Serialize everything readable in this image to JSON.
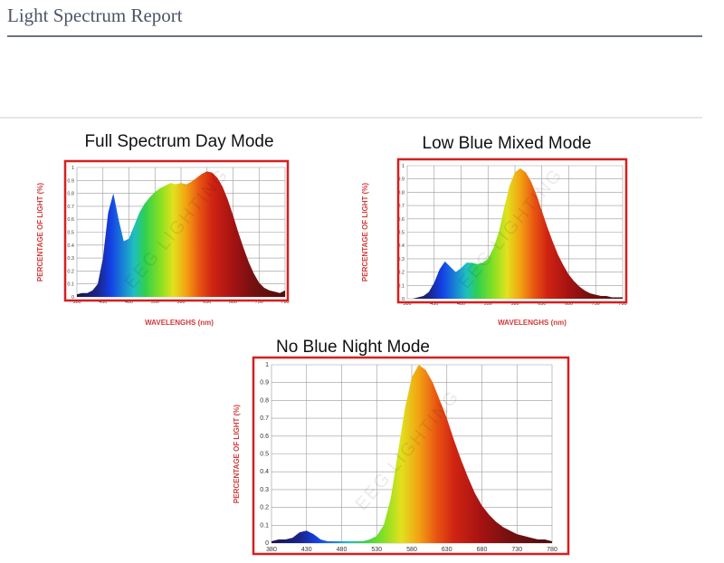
{
  "header": {
    "title": "Light Spectrum Report"
  },
  "chart_data": [
    {
      "type": "area",
      "title": "Full Spectrum Day Mode",
      "xlabel": "WAVELENGHS (nm)",
      "ylabel": "PERCENTAGE OF LIGHT (%)",
      "watermark": "EEG LIGHTING",
      "x": [
        380,
        390,
        400,
        410,
        420,
        430,
        440,
        450,
        460,
        470,
        480,
        490,
        500,
        510,
        520,
        530,
        540,
        550,
        560,
        570,
        580,
        590,
        600,
        610,
        620,
        630,
        640,
        650,
        660,
        670,
        680,
        690,
        700,
        710,
        720,
        730,
        740,
        750,
        760,
        770,
        780
      ],
      "values": [
        0.02,
        0.03,
        0.03,
        0.05,
        0.1,
        0.3,
        0.65,
        0.8,
        0.6,
        0.43,
        0.45,
        0.55,
        0.65,
        0.72,
        0.77,
        0.81,
        0.84,
        0.86,
        0.88,
        0.87,
        0.88,
        0.87,
        0.89,
        0.92,
        0.95,
        0.97,
        0.96,
        0.92,
        0.85,
        0.75,
        0.63,
        0.5,
        0.38,
        0.27,
        0.18,
        0.11,
        0.07,
        0.05,
        0.04,
        0.03,
        0.05
      ],
      "xlim": [
        380,
        780
      ],
      "xticks": [
        380,
        430,
        480,
        530,
        580,
        630,
        680,
        730,
        780
      ],
      "ylim": [
        0,
        1
      ],
      "yticks": [
        0,
        0.1,
        0.2,
        0.3,
        0.4,
        0.5,
        0.6,
        0.7,
        0.8,
        0.9,
        1
      ],
      "grid": true
    },
    {
      "type": "area",
      "title": "Low Blue Mixed Mode",
      "xlabel": "WAVELENGHS (nm)",
      "ylabel": "PERCENTAGE OF LIGHT (%)",
      "watermark": "EEG LIGHTING",
      "x": [
        380,
        390,
        400,
        410,
        420,
        430,
        440,
        450,
        460,
        470,
        480,
        490,
        500,
        510,
        520,
        530,
        540,
        550,
        560,
        570,
        580,
        590,
        600,
        610,
        620,
        630,
        640,
        650,
        660,
        670,
        680,
        690,
        700,
        710,
        720,
        730,
        740,
        750,
        760,
        770,
        780
      ],
      "values": [
        0,
        0,
        0.01,
        0.02,
        0.05,
        0.12,
        0.22,
        0.28,
        0.24,
        0.2,
        0.23,
        0.27,
        0.27,
        0.26,
        0.27,
        0.3,
        0.38,
        0.5,
        0.68,
        0.85,
        0.95,
        0.98,
        0.95,
        0.88,
        0.78,
        0.66,
        0.54,
        0.43,
        0.33,
        0.25,
        0.18,
        0.13,
        0.09,
        0.06,
        0.04,
        0.03,
        0.02,
        0.02,
        0.01,
        0.01,
        0.01
      ],
      "xlim": [
        380,
        780
      ],
      "xticks": [
        380,
        430,
        480,
        530,
        580,
        630,
        680,
        730,
        780
      ],
      "ylim": [
        0,
        1
      ],
      "yticks": [
        0,
        0.1,
        0.2,
        0.3,
        0.4,
        0.5,
        0.6,
        0.7,
        0.8,
        0.9,
        1
      ],
      "grid": true
    },
    {
      "type": "area",
      "title": "No Blue Night Mode",
      "ylabel": "PERCENTAGE OF LIGHT (%)",
      "watermark": "EEG LIGHTING",
      "x": [
        380,
        390,
        400,
        410,
        420,
        430,
        440,
        450,
        460,
        470,
        480,
        490,
        500,
        510,
        520,
        530,
        540,
        550,
        560,
        570,
        580,
        590,
        600,
        610,
        620,
        630,
        640,
        650,
        660,
        670,
        680,
        690,
        700,
        710,
        720,
        730,
        740,
        750,
        760,
        770,
        780
      ],
      "values": [
        0.01,
        0.02,
        0.02,
        0.03,
        0.06,
        0.07,
        0.05,
        0.02,
        0.01,
        0.01,
        0.01,
        0.01,
        0.01,
        0.01,
        0.02,
        0.04,
        0.1,
        0.25,
        0.5,
        0.75,
        0.93,
        1.0,
        0.97,
        0.9,
        0.8,
        0.7,
        0.58,
        0.47,
        0.37,
        0.28,
        0.21,
        0.16,
        0.12,
        0.09,
        0.07,
        0.05,
        0.04,
        0.03,
        0.02,
        0.02,
        0.01
      ],
      "xlim": [
        380,
        780
      ],
      "xticks": [
        380,
        430,
        480,
        530,
        580,
        630,
        680,
        730,
        780
      ],
      "ylim": [
        0,
        1
      ],
      "yticks": [
        0,
        0.1,
        0.2,
        0.3,
        0.4,
        0.5,
        0.6,
        0.7,
        0.8,
        0.9,
        1
      ],
      "grid": true
    }
  ]
}
